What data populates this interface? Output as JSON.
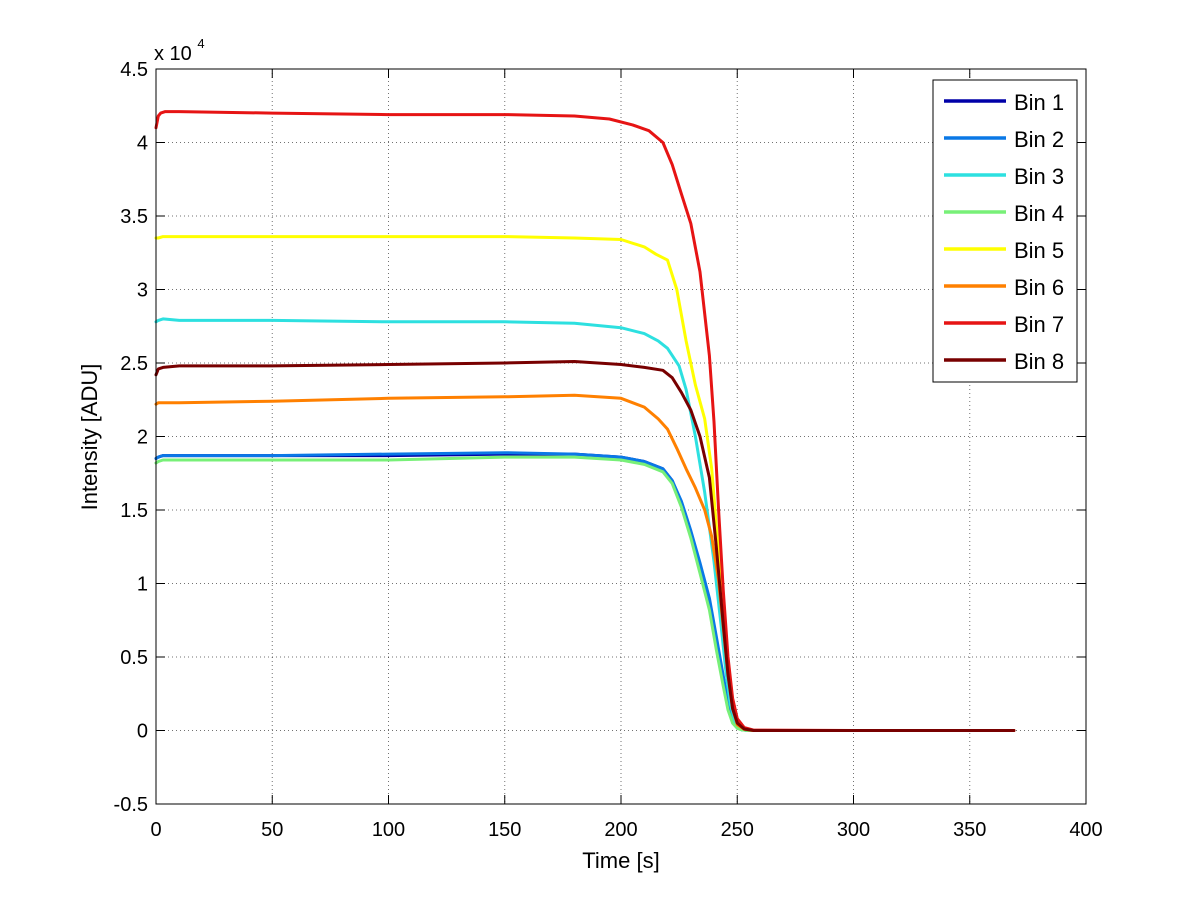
{
  "chart_data": {
    "type": "line",
    "title": "",
    "xlabel": "Time [s]",
    "ylabel": "Intensity [ADU]",
    "y_multiplier": "x 10",
    "y_multiplier_exponent": "4",
    "xlim": [
      0,
      400
    ],
    "ylim": [
      -0.5,
      4.5
    ],
    "xticks": [
      0,
      50,
      100,
      150,
      200,
      250,
      300,
      350,
      400
    ],
    "xtick_labels": [
      "0",
      "50",
      "100",
      "150",
      "200",
      "250",
      "300",
      "350",
      "400"
    ],
    "yticks": [
      -0.5,
      0,
      0.5,
      1,
      1.5,
      2,
      2.5,
      3,
      3.5,
      4,
      4.5
    ],
    "ytick_labels": [
      "-0.5",
      "0",
      "0.5",
      "1",
      "1.5",
      "2",
      "2.5",
      "3",
      "3.5",
      "4",
      "4.5"
    ],
    "grid": true,
    "legend_position": "top-right",
    "series": [
      {
        "name": "Bin 1",
        "color": "#0000a8",
        "x": [
          0,
          1,
          3,
          10,
          50,
          100,
          150,
          180,
          200,
          210,
          218,
          222,
          226,
          230,
          234,
          238,
          241,
          244,
          246,
          248,
          250,
          252,
          255,
          260,
          300,
          369
        ],
        "y": [
          1.85,
          1.86,
          1.87,
          1.87,
          1.87,
          1.87,
          1.88,
          1.88,
          1.86,
          1.83,
          1.78,
          1.7,
          1.55,
          1.35,
          1.12,
          0.88,
          0.62,
          0.35,
          0.18,
          0.07,
          0.02,
          0.005,
          0,
          0,
          0,
          0
        ]
      },
      {
        "name": "Bin 2",
        "color": "#0a78e6",
        "x": [
          0,
          1,
          3,
          10,
          50,
          100,
          150,
          180,
          200,
          210,
          218,
          222,
          226,
          230,
          234,
          238,
          241,
          244,
          246,
          248,
          250,
          252,
          255,
          260,
          300,
          369
        ],
        "y": [
          1.85,
          1.86,
          1.87,
          1.87,
          1.87,
          1.88,
          1.89,
          1.88,
          1.86,
          1.83,
          1.78,
          1.7,
          1.56,
          1.36,
          1.14,
          0.9,
          0.64,
          0.37,
          0.19,
          0.08,
          0.02,
          0.005,
          0,
          0,
          0,
          0
        ]
      },
      {
        "name": "Bin 3",
        "color": "#2de0e0",
        "x": [
          0,
          1,
          3,
          10,
          50,
          100,
          150,
          180,
          200,
          210,
          216,
          220,
          225,
          228,
          232,
          236,
          240,
          243,
          245,
          247,
          249,
          251,
          254,
          258,
          300,
          369
        ],
        "y": [
          2.78,
          2.79,
          2.8,
          2.79,
          2.79,
          2.78,
          2.78,
          2.77,
          2.74,
          2.7,
          2.65,
          2.6,
          2.48,
          2.32,
          2.0,
          1.62,
          1.15,
          0.72,
          0.42,
          0.18,
          0.06,
          0.015,
          0,
          0,
          0,
          0
        ]
      },
      {
        "name": "Bin 4",
        "color": "#78f078",
        "x": [
          0,
          1,
          3,
          10,
          50,
          100,
          150,
          180,
          200,
          210,
          218,
          222,
          226,
          230,
          234,
          238,
          241,
          244,
          246,
          248,
          250,
          252,
          255,
          260,
          300,
          369
        ],
        "y": [
          1.82,
          1.83,
          1.84,
          1.84,
          1.84,
          1.84,
          1.86,
          1.86,
          1.84,
          1.81,
          1.76,
          1.68,
          1.52,
          1.31,
          1.07,
          0.82,
          0.55,
          0.3,
          0.14,
          0.05,
          0.015,
          0.004,
          0,
          0,
          0,
          0
        ]
      },
      {
        "name": "Bin 5",
        "color": "#ffff00",
        "x": [
          0,
          1,
          3,
          10,
          50,
          100,
          150,
          180,
          200,
          210,
          215,
          220,
          224,
          228,
          232,
          236,
          239,
          242,
          244,
          246,
          248,
          250,
          253,
          257,
          300,
          369
        ],
        "y": [
          3.35,
          3.35,
          3.36,
          3.36,
          3.36,
          3.36,
          3.36,
          3.35,
          3.34,
          3.29,
          3.24,
          3.2,
          3.0,
          2.65,
          2.35,
          2.12,
          1.78,
          1.2,
          0.8,
          0.45,
          0.2,
          0.07,
          0.015,
          0,
          0,
          0
        ]
      },
      {
        "name": "Bin 6",
        "color": "#ff8000",
        "x": [
          0,
          1,
          3,
          10,
          50,
          100,
          150,
          180,
          200,
          210,
          216,
          220,
          224,
          228,
          232,
          236,
          239,
          242,
          244,
          246,
          248,
          250,
          253,
          257,
          300,
          369
        ],
        "y": [
          2.22,
          2.23,
          2.23,
          2.23,
          2.24,
          2.26,
          2.27,
          2.28,
          2.26,
          2.2,
          2.12,
          2.05,
          1.92,
          1.78,
          1.65,
          1.5,
          1.32,
          1.02,
          0.7,
          0.38,
          0.15,
          0.04,
          0.008,
          0,
          0,
          0
        ]
      },
      {
        "name": "Bin 7",
        "color": "#e61414",
        "x": [
          0,
          1,
          2,
          4,
          10,
          50,
          100,
          150,
          180,
          195,
          205,
          212,
          218,
          222,
          226,
          230,
          234,
          238,
          240,
          242,
          244,
          246,
          248,
          250,
          253,
          257,
          300,
          369
        ],
        "y": [
          4.1,
          4.18,
          4.2,
          4.21,
          4.21,
          4.2,
          4.19,
          4.19,
          4.18,
          4.16,
          4.12,
          4.08,
          4.0,
          3.85,
          3.65,
          3.45,
          3.12,
          2.55,
          2.1,
          1.5,
          0.95,
          0.5,
          0.22,
          0.08,
          0.02,
          0.003,
          0,
          0
        ]
      },
      {
        "name": "Bin 8",
        "color": "#780000",
        "x": [
          0,
          1,
          3,
          10,
          50,
          100,
          150,
          180,
          200,
          210,
          218,
          222,
          226,
          230,
          234,
          238,
          241,
          244,
          246,
          248,
          250,
          253,
          257,
          300,
          369
        ],
        "y": [
          2.42,
          2.46,
          2.47,
          2.48,
          2.48,
          2.49,
          2.5,
          2.51,
          2.49,
          2.47,
          2.45,
          2.4,
          2.3,
          2.18,
          2.0,
          1.72,
          1.25,
          0.72,
          0.38,
          0.15,
          0.05,
          0.01,
          0,
          0,
          0
        ]
      }
    ]
  }
}
